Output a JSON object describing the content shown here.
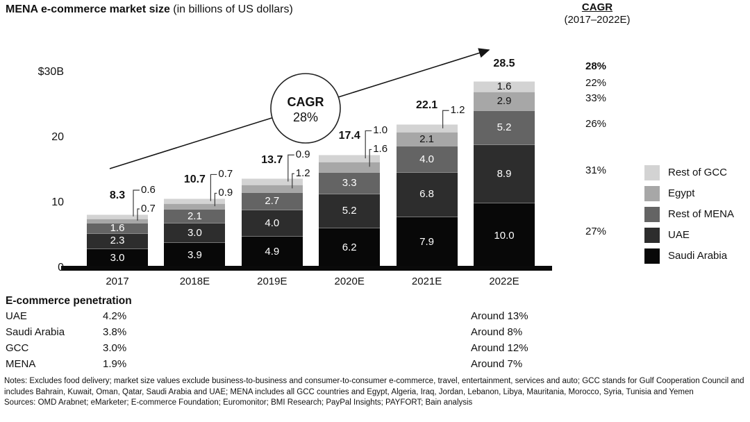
{
  "title": {
    "main": "MENA e-commerce market size",
    "sub": " (in billions of US dollars)"
  },
  "cagr_header": {
    "title": "CAGR",
    "subtitle": "(2017–2022E)"
  },
  "chart_data": {
    "type": "bar",
    "stacked": true,
    "title": "MENA e-commerce market size (in billions of US dollars)",
    "categories": [
      "2017",
      "2018E",
      "2019E",
      "2020E",
      "2021E",
      "2022E"
    ],
    "series": [
      {
        "name": "Saudi Arabia",
        "color": "#080808",
        "label_color": "#ffffff",
        "values": [
          3.0,
          3.9,
          4.9,
          6.2,
          7.9,
          10.0
        ],
        "cagr": "27%"
      },
      {
        "name": "UAE",
        "color": "#2d2d2d",
        "label_color": "#ffffff",
        "values": [
          2.3,
          3.0,
          4.0,
          5.2,
          6.8,
          8.9
        ],
        "cagr": "31%"
      },
      {
        "name": "Rest of MENA",
        "color": "#646464",
        "label_color": "#ffffff",
        "values": [
          1.6,
          2.1,
          2.7,
          3.3,
          4.0,
          5.2
        ],
        "cagr": "26%"
      },
      {
        "name": "Egypt",
        "color": "#a7a7a7",
        "label_color": "#111111",
        "values": [
          0.7,
          0.9,
          1.2,
          1.6,
          2.1,
          2.9
        ],
        "cagr": "33%"
      },
      {
        "name": "Rest of GCC",
        "color": "#d3d3d3",
        "label_color": "#111111",
        "values": [
          0.6,
          0.7,
          0.9,
          1.0,
          1.2,
          1.6
        ],
        "cagr": "22%"
      }
    ],
    "totals": [
      8.3,
      10.7,
      13.7,
      17.4,
      22.1,
      28.5
    ],
    "total_cagr": "28%",
    "y_ticks": [
      "$30B",
      "20",
      "10",
      "0"
    ],
    "y_tick_values": [
      30,
      20,
      10,
      0
    ],
    "ylim": [
      0,
      30
    ],
    "grid": false,
    "legend_position": "right",
    "legend": [
      "Rest of GCC",
      "Egypt",
      "Rest of MENA",
      "UAE",
      "Saudi Arabia"
    ],
    "annotation": {
      "circle_line1": "CAGR",
      "circle_line2": "28%"
    }
  },
  "penetration": {
    "header": "E-commerce penetration",
    "rows": [
      {
        "label": "UAE",
        "value": "4.2%",
        "around": "Around 13%"
      },
      {
        "label": "Saudi Arabia",
        "value": "3.8%",
        "around": "Around 8%"
      },
      {
        "label": "GCC",
        "value": "3.0%",
        "around": "Around 12%"
      },
      {
        "label": "MENA",
        "value": "1.9%",
        "around": "Around 7%"
      }
    ]
  },
  "notes": "Notes: Excludes food delivery; market size values exclude business-to-business and consumer-to-consumer e-commerce, travel, entertainment, services and auto; GCC stands for Gulf Cooperation Council and includes Bahrain, Kuwait, Oman, Qatar, Saudi Arabia and UAE; MENA includes all GCC countries and Egypt, Algeria, Iraq, Jordan, Lebanon, Libya, Mauritania, Morocco, Syria, Tunisia and Yemen",
  "sources": "Sources: OMD Arabnet; eMarketer; E-commerce Foundation; Euromonitor; BMI Research; PayPal Insights; PAYFORT; Bain analysis"
}
